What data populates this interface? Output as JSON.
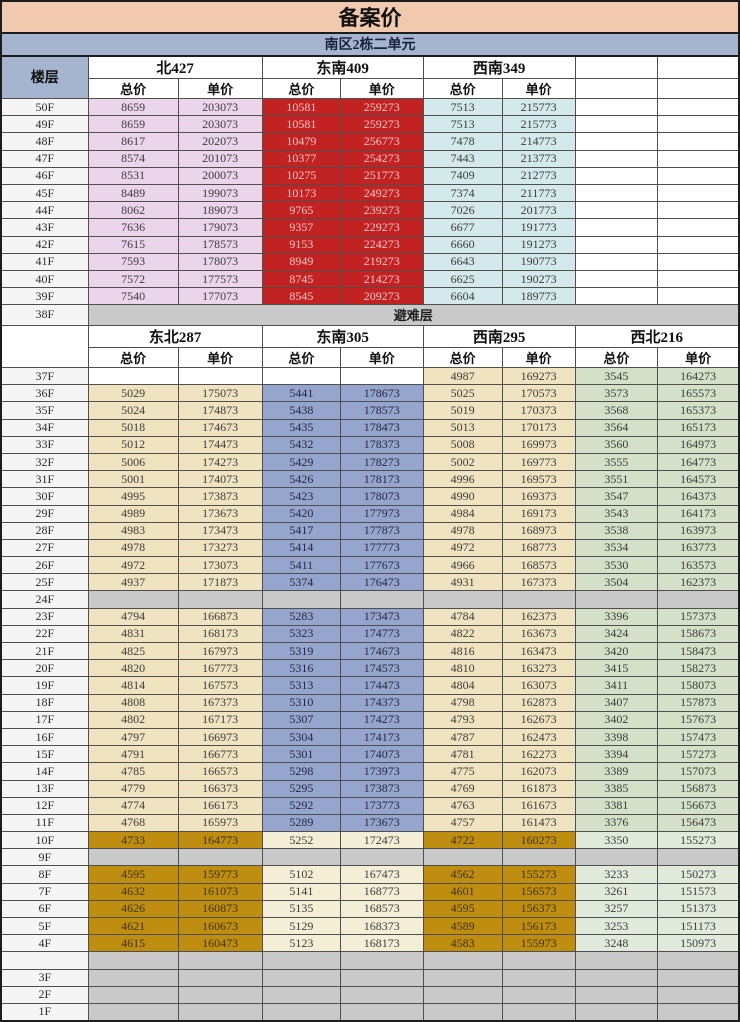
{
  "title": "备案价",
  "subtitle": "南区2栋二单元",
  "floor_header": "楼层",
  "price_sub_headers": [
    "总价",
    "单价"
  ],
  "colors": {
    "title_bg": "#F0C9AE",
    "subtitle_bg": "#A6B5CF",
    "north427_bg": "#EBD5EB",
    "southeast409_bg": "#C32222",
    "southeast409_text": "#F2C5C5",
    "southwest349_bg": "#D3E9EC",
    "northeast287_bg": "#EFE3C0",
    "southeast305_bg": "#95A5CE",
    "southwest295_bg": "#EFE3C0",
    "northwest216_bg": "#D4E0C8",
    "highlight_gold": "#BF8D10",
    "highlight_cream": "#F5EED6",
    "highlight_pale_green": "#E2EADC",
    "empty_gray": "#C9C9C9"
  },
  "row_style_presets": {
    "right_only": [
      "plain",
      "plain",
      "plain",
      "plain",
      "tan",
      "tan",
      "green",
      "green"
    ],
    "gold_highlight": [
      "gold",
      "gold",
      "cream",
      "cream",
      "gold",
      "gold",
      "palegreen",
      "palegreen"
    ],
    "empty_gray": [
      "gray",
      "gray",
      "gray",
      "gray",
      "gray",
      "gray",
      "gray",
      "gray"
    ]
  },
  "sections": [
    {
      "units": [
        "北427",
        "东南409",
        "西南349"
      ],
      "trailing_empty_columns": 2,
      "column_styles": [
        "pink",
        "pink",
        "red",
        "red",
        "cyan",
        "cyan",
        "plain",
        "plain"
      ],
      "rows": [
        {
          "floor": "50F",
          "values": [
            "8659",
            "203073",
            "10581",
            "259273",
            "7513",
            "215773",
            "",
            ""
          ]
        },
        {
          "floor": "49F",
          "values": [
            "8659",
            "203073",
            "10581",
            "259273",
            "7513",
            "215773",
            "",
            ""
          ]
        },
        {
          "floor": "48F",
          "values": [
            "8617",
            "202073",
            "10479",
            "256773",
            "7478",
            "214773",
            "",
            ""
          ]
        },
        {
          "floor": "47F",
          "values": [
            "8574",
            "201073",
            "10377",
            "254273",
            "7443",
            "213773",
            "",
            ""
          ]
        },
        {
          "floor": "46F",
          "values": [
            "8531",
            "200073",
            "10275",
            "251773",
            "7409",
            "212773",
            "",
            ""
          ]
        },
        {
          "floor": "45F",
          "values": [
            "8489",
            "199073",
            "10173",
            "249273",
            "7374",
            "211773",
            "",
            ""
          ]
        },
        {
          "floor": "44F",
          "values": [
            "8062",
            "189073",
            "9765",
            "239273",
            "7026",
            "201773",
            "",
            ""
          ]
        },
        {
          "floor": "43F",
          "values": [
            "7636",
            "179073",
            "9357",
            "229273",
            "6677",
            "191773",
            "",
            ""
          ]
        },
        {
          "floor": "42F",
          "values": [
            "7615",
            "178573",
            "9153",
            "224273",
            "6660",
            "191273",
            "",
            ""
          ]
        },
        {
          "floor": "41F",
          "values": [
            "7593",
            "178073",
            "8949",
            "219273",
            "6643",
            "190773",
            "",
            ""
          ]
        },
        {
          "floor": "40F",
          "values": [
            "7572",
            "177573",
            "8745",
            "214273",
            "6625",
            "190273",
            "",
            ""
          ]
        },
        {
          "floor": "39F",
          "values": [
            "7540",
            "177073",
            "8545",
            "209273",
            "6604",
            "189773",
            "",
            ""
          ]
        },
        {
          "floor": "38F",
          "merged_label": "避难层"
        }
      ]
    },
    {
      "units": [
        "东北287",
        "东南305",
        "西南295",
        "西北216"
      ],
      "trailing_empty_columns": 0,
      "column_styles": [
        "tan",
        "tan",
        "blue",
        "blue",
        "tan",
        "tan",
        "green",
        "green"
      ],
      "rows": [
        {
          "floor": "37F",
          "values": [
            "",
            "",
            "",
            "",
            "4987",
            "169273",
            "3545",
            "164273"
          ],
          "style_preset": "right_only"
        },
        {
          "floor": "36F",
          "values": [
            "5029",
            "175073",
            "5441",
            "178673",
            "5025",
            "170573",
            "3573",
            "165573"
          ]
        },
        {
          "floor": "35F",
          "values": [
            "5024",
            "174873",
            "5438",
            "178573",
            "5019",
            "170373",
            "3568",
            "165373"
          ]
        },
        {
          "floor": "34F",
          "values": [
            "5018",
            "174673",
            "5435",
            "178473",
            "5013",
            "170173",
            "3564",
            "165173"
          ]
        },
        {
          "floor": "33F",
          "values": [
            "5012",
            "174473",
            "5432",
            "178373",
            "5008",
            "169973",
            "3560",
            "164973"
          ]
        },
        {
          "floor": "32F",
          "values": [
            "5006",
            "174273",
            "5429",
            "178273",
            "5002",
            "169773",
            "3555",
            "164773"
          ]
        },
        {
          "floor": "31F",
          "values": [
            "5001",
            "174073",
            "5426",
            "178173",
            "4996",
            "169573",
            "3551",
            "164573"
          ]
        },
        {
          "floor": "30F",
          "values": [
            "4995",
            "173873",
            "5423",
            "178073",
            "4990",
            "169373",
            "3547",
            "164373"
          ]
        },
        {
          "floor": "29F",
          "values": [
            "4989",
            "173673",
            "5420",
            "177973",
            "4984",
            "169173",
            "3543",
            "164173"
          ]
        },
        {
          "floor": "28F",
          "values": [
            "4983",
            "173473",
            "5417",
            "177873",
            "4978",
            "168973",
            "3538",
            "163973"
          ]
        },
        {
          "floor": "27F",
          "values": [
            "4978",
            "173273",
            "5414",
            "177773",
            "4972",
            "168773",
            "3534",
            "163773"
          ]
        },
        {
          "floor": "26F",
          "values": [
            "4972",
            "173073",
            "5411",
            "177673",
            "4966",
            "168573",
            "3530",
            "163573"
          ]
        },
        {
          "floor": "25F",
          "values": [
            "4937",
            "171873",
            "5374",
            "176473",
            "4931",
            "167373",
            "3504",
            "162373"
          ]
        },
        {
          "floor": "24F",
          "values": [
            "",
            "",
            "",
            "",
            "",
            "",
            "",
            ""
          ],
          "style_preset": "empty_gray"
        },
        {
          "floor": "23F",
          "values": [
            "4794",
            "166873",
            "5283",
            "173473",
            "4784",
            "162373",
            "3396",
            "157373"
          ]
        },
        {
          "floor": "22F",
          "values": [
            "4831",
            "168173",
            "5323",
            "174773",
            "4822",
            "163673",
            "3424",
            "158673"
          ]
        },
        {
          "floor": "21F",
          "values": [
            "4825",
            "167973",
            "5319",
            "174673",
            "4816",
            "163473",
            "3420",
            "158473"
          ]
        },
        {
          "floor": "20F",
          "values": [
            "4820",
            "167773",
            "5316",
            "174573",
            "4810",
            "163273",
            "3415",
            "158273"
          ]
        },
        {
          "floor": "19F",
          "values": [
            "4814",
            "167573",
            "5313",
            "174473",
            "4804",
            "163073",
            "3411",
            "158073"
          ]
        },
        {
          "floor": "18F",
          "values": [
            "4808",
            "167373",
            "5310",
            "174373",
            "4798",
            "162873",
            "3407",
            "157873"
          ]
        },
        {
          "floor": "17F",
          "values": [
            "4802",
            "167173",
            "5307",
            "174273",
            "4793",
            "162673",
            "3402",
            "157673"
          ]
        },
        {
          "floor": "16F",
          "values": [
            "4797",
            "166973",
            "5304",
            "174173",
            "4787",
            "162473",
            "3398",
            "157473"
          ]
        },
        {
          "floor": "15F",
          "values": [
            "4791",
            "166773",
            "5301",
            "174073",
            "4781",
            "162273",
            "3394",
            "157273"
          ]
        },
        {
          "floor": "14F",
          "values": [
            "4785",
            "166573",
            "5298",
            "173973",
            "4775",
            "162073",
            "3389",
            "157073"
          ]
        },
        {
          "floor": "13F",
          "values": [
            "4779",
            "166373",
            "5295",
            "173873",
            "4769",
            "161873",
            "3385",
            "156873"
          ]
        },
        {
          "floor": "12F",
          "values": [
            "4774",
            "166173",
            "5292",
            "173773",
            "4763",
            "161673",
            "3381",
            "156673"
          ]
        },
        {
          "floor": "11F",
          "values": [
            "4768",
            "165973",
            "5289",
            "173673",
            "4757",
            "161473",
            "3376",
            "156473"
          ]
        },
        {
          "floor": "10F",
          "values": [
            "4733",
            "164773",
            "5252",
            "172473",
            "4722",
            "160273",
            "3350",
            "155273"
          ],
          "style_preset": "gold_highlight"
        },
        {
          "floor": "9F",
          "values": [
            "",
            "",
            "",
            "",
            "",
            "",
            "",
            ""
          ],
          "style_preset": "empty_gray"
        },
        {
          "floor": "8F",
          "values": [
            "4595",
            "159773",
            "5102",
            "167473",
            "4562",
            "155273",
            "3233",
            "150273"
          ],
          "style_preset": "gold_highlight"
        },
        {
          "floor": "7F",
          "values": [
            "4632",
            "161073",
            "5141",
            "168773",
            "4601",
            "156573",
            "3261",
            "151573"
          ],
          "style_preset": "gold_highlight"
        },
        {
          "floor": "6F",
          "values": [
            "4626",
            "160873",
            "5135",
            "168573",
            "4595",
            "156373",
            "3257",
            "151373"
          ],
          "style_preset": "gold_highlight"
        },
        {
          "floor": "5F",
          "values": [
            "4621",
            "160673",
            "5129",
            "168373",
            "4589",
            "156173",
            "3253",
            "151173"
          ],
          "style_preset": "gold_highlight"
        },
        {
          "floor": "4F",
          "values": [
            "4615",
            "160473",
            "5123",
            "168173",
            "4583",
            "155973",
            "3248",
            "150973"
          ],
          "style_preset": "gold_highlight"
        },
        {
          "floor": "",
          "values": [
            "",
            "",
            "",
            "",
            "",
            "",
            "",
            ""
          ],
          "style_preset": "empty_gray"
        },
        {
          "floor": "3F",
          "values": [
            "",
            "",
            "",
            "",
            "",
            "",
            "",
            ""
          ],
          "style_preset": "empty_gray"
        },
        {
          "floor": "2F",
          "values": [
            "",
            "",
            "",
            "",
            "",
            "",
            "",
            ""
          ],
          "style_preset": "empty_gray"
        },
        {
          "floor": "1F",
          "values": [
            "",
            "",
            "",
            "",
            "",
            "",
            "",
            ""
          ],
          "style_preset": "empty_gray"
        }
      ]
    }
  ]
}
